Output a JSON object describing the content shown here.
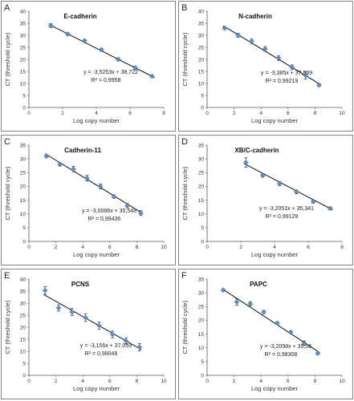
{
  "chart_data": [
    {
      "panel": "A",
      "type": "scatter",
      "title": "E-cadherin",
      "xlabel": "Log copy number",
      "ylabel": "CT (threshold cycle)",
      "xlim": [
        0,
        8
      ],
      "ylim": [
        0,
        40
      ],
      "xticks": [
        0,
        2,
        4,
        6,
        8
      ],
      "yticks": [
        0,
        5,
        10,
        15,
        20,
        25,
        30,
        35,
        40
      ],
      "x": [
        1.3,
        2.3,
        3.3,
        4.3,
        5.3,
        6.3,
        7.3
      ],
      "y": [
        34.0,
        30.5,
        27.7,
        24.0,
        20.0,
        16.5,
        13.0
      ],
      "err": [
        0.8,
        0.6,
        0.7,
        0.6,
        0.6,
        0.7,
        0.4
      ],
      "fit": {
        "slope": -3.5253,
        "intercept": 38.722
      },
      "equation": "y = -3,5253x + 38,722",
      "r2_label": "R² = 0,9958",
      "grid": false
    },
    {
      "panel": "B",
      "type": "scatter",
      "title": "N-cadherin",
      "xlabel": "Log copy number",
      "ylabel": "CT (threshold cycle)",
      "xlim": [
        0,
        10
      ],
      "ylim": [
        0,
        40
      ],
      "xticks": [
        0,
        2,
        4,
        6,
        8,
        10
      ],
      "yticks": [
        0,
        5,
        10,
        15,
        20,
        25,
        30,
        35,
        40
      ],
      "x": [
        1.3,
        2.3,
        3.3,
        4.3,
        5.3,
        6.3,
        7.3,
        8.3
      ],
      "y": [
        33.0,
        30.0,
        27.5,
        24.3,
        20.5,
        16.7,
        13.3,
        9.3
      ],
      "err": [
        0.6,
        0.8,
        1.0,
        1.0,
        1.0,
        1.0,
        1.5,
        0.6
      ],
      "fit": {
        "slope": -3.385,
        "intercept": 37.989
      },
      "equation": "y = -3,385x + 37,989",
      "r2_label": "R² = 0,99219",
      "grid": false
    },
    {
      "panel": "C",
      "type": "scatter",
      "title": "Cadherin-11",
      "xlabel": "Log copy number",
      "ylabel": "CT (threshold cycle)",
      "xlim": [
        0,
        10
      ],
      "ylim": [
        0,
        35
      ],
      "xticks": [
        0,
        2,
        4,
        6,
        8,
        10
      ],
      "yticks": [
        0,
        5,
        10,
        15,
        20,
        25,
        30,
        35
      ],
      "x": [
        1.3,
        2.3,
        3.3,
        4.3,
        5.3,
        6.3,
        7.3,
        8.3
      ],
      "y": [
        31.0,
        28.0,
        26.3,
        23.0,
        20.0,
        16.3,
        13.0,
        10.3
      ],
      "err": [
        0.5,
        0.6,
        1.0,
        1.0,
        0.9,
        0.6,
        0.8,
        0.9
      ],
      "fit": {
        "slope": -3.0086,
        "intercept": 35.548
      },
      "equation": "y = -3,0086x + 35,548",
      "r2_label": "R² = 0,99436",
      "grid": false
    },
    {
      "panel": "D",
      "type": "scatter",
      "title": "XB/C-cadherin",
      "xlabel": "Log copy number",
      "ylabel": "CT (threshold cycle)",
      "xlim": [
        0,
        8
      ],
      "ylim": [
        0,
        35
      ],
      "xticks": [
        0,
        2,
        4,
        6,
        8
      ],
      "yticks": [
        0,
        5,
        10,
        15,
        20,
        25,
        30,
        35
      ],
      "x": [
        2.3,
        3.3,
        4.3,
        5.3,
        6.3,
        7.3
      ],
      "y": [
        28.7,
        24.0,
        21.0,
        18.0,
        14.5,
        12.0
      ],
      "err": [
        1.7,
        0.6,
        0.8,
        0.7,
        0.6,
        0.5
      ],
      "fit": {
        "slope": -3.2051,
        "intercept": 35.341
      },
      "equation": "y = -3,2051x + 35,341",
      "r2_label": "R² = 0,99129",
      "grid": false
    },
    {
      "panel": "E",
      "type": "scatter",
      "title": "PCNS",
      "xlabel": "Log copy number",
      "ylabel": "CT (threshold cycle)",
      "xlim": [
        0,
        10
      ],
      "ylim": [
        0,
        40
      ],
      "xticks": [
        0,
        2,
        4,
        6,
        8,
        10
      ],
      "yticks": [
        0,
        5,
        10,
        15,
        20,
        25,
        30,
        35,
        40
      ],
      "x": [
        1.2,
        2.2,
        3.2,
        4.2,
        5.2,
        6.2,
        7.2,
        8.2
      ],
      "y": [
        35.3,
        28.0,
        26.3,
        24.0,
        20.7,
        17.0,
        14.3,
        11.7
      ],
      "err": [
        1.6,
        1.3,
        1.5,
        1.6,
        1.5,
        1.4,
        1.3,
        1.5
      ],
      "fit": {
        "slope": -3.156,
        "intercept": 37.059
      },
      "equation": "y = -3,156x + 37,059",
      "r2_label": "R² = 0,98048",
      "grid": false
    },
    {
      "panel": "F",
      "type": "scatter",
      "title": "PAPC",
      "xlabel": "Log copy number",
      "ylabel": "CT (threshold cycle)",
      "xlim": [
        0,
        10
      ],
      "ylim": [
        0,
        35
      ],
      "xticks": [
        0,
        2,
        4,
        6,
        8,
        10
      ],
      "yticks": [
        0,
        5,
        10,
        15,
        20,
        25,
        30,
        35
      ],
      "x": [
        1.2,
        2.2,
        3.2,
        4.2,
        5.2,
        6.2,
        7.2,
        8.2
      ],
      "y": [
        31.0,
        26.7,
        26.0,
        23.0,
        19.0,
        15.7,
        11.7,
        8.0
      ],
      "err": [
        0.5,
        1.2,
        0.8,
        0.6,
        0.5,
        0.5,
        0.8,
        0.5
      ],
      "fit": {
        "slope": -3.2098,
        "intercept": 35.06
      },
      "equation": "y = -3,2098x + 35,06",
      "r2_label": "R² = 0,98308",
      "grid": false
    }
  ],
  "colors": {
    "marker": "#5b8fc9",
    "marker_stroke": "#3b6ea8",
    "error_bar": "#333333",
    "fit_line": "#111111",
    "axis": "#555555",
    "panel_border": "#666666"
  },
  "icons": {
    "marker": "diamond-marker"
  }
}
